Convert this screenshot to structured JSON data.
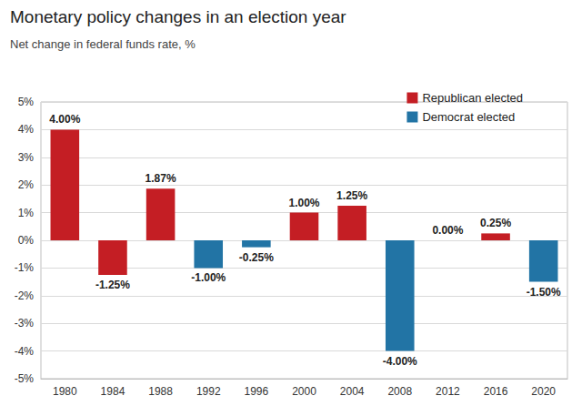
{
  "chart_data": {
    "type": "bar",
    "title": "Monetary policy changes in an election year",
    "subtitle": "Net change in federal funds rate, %",
    "categories": [
      "1980",
      "1984",
      "1988",
      "1992",
      "1996",
      "2000",
      "2004",
      "2008",
      "2012",
      "2016",
      "2020"
    ],
    "series": [
      {
        "name": "Republican elected",
        "color": "#c41e24",
        "values": [
          4.0,
          -1.25,
          1.87,
          null,
          null,
          1.0,
          1.25,
          null,
          null,
          0.25,
          null
        ],
        "value_labels": [
          "4.00%",
          "-1.25%",
          "1.87%",
          null,
          null,
          "1.00%",
          "1.25%",
          null,
          null,
          "0.25%",
          null
        ]
      },
      {
        "name": "Democrat elected",
        "color": "#2274a5",
        "values": [
          null,
          null,
          null,
          -1.0,
          -0.25,
          null,
          null,
          -4.0,
          0.0,
          null,
          -1.5
        ],
        "value_labels": [
          null,
          null,
          null,
          "-1.00%",
          "-0.25%",
          null,
          null,
          "-4.00%",
          "0.00%",
          null,
          "-1.50%"
        ]
      }
    ],
    "ylim": [
      -5,
      5
    ],
    "yticks": [
      {
        "value": -5,
        "label": "-5%"
      },
      {
        "value": -4,
        "label": "-4%"
      },
      {
        "value": -3,
        "label": "-3%"
      },
      {
        "value": -2,
        "label": "-2%"
      },
      {
        "value": -1,
        "label": "-1%"
      },
      {
        "value": 0,
        "label": "0%"
      },
      {
        "value": 1,
        "label": "1%"
      },
      {
        "value": 2,
        "label": "2%"
      },
      {
        "value": 3,
        "label": "3%"
      },
      {
        "value": 4,
        "label": "4%"
      },
      {
        "value": 5,
        "label": "5%"
      }
    ],
    "grid": true,
    "legend": "upper right",
    "data_labels": true
  }
}
